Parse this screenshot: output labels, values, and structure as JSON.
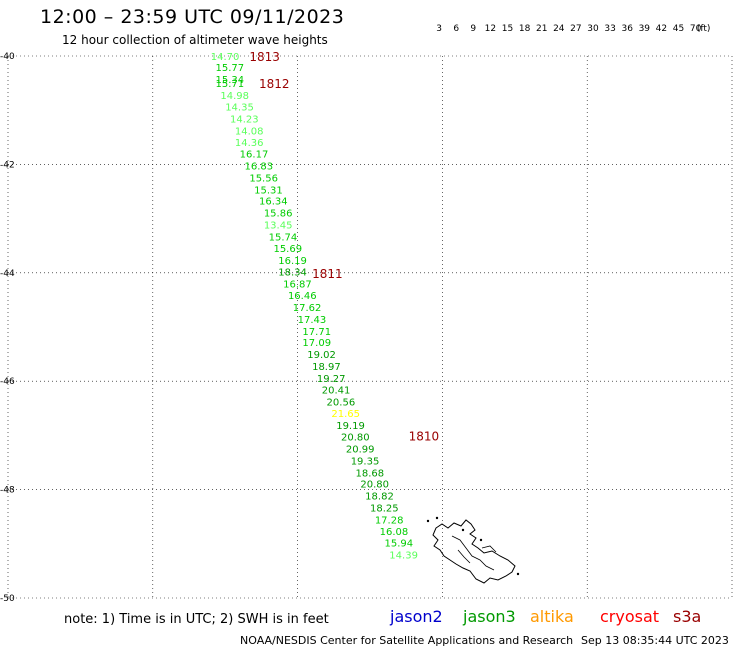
{
  "header": {
    "title": "12:00 – 23:59 UTC 09/11/2023",
    "subtitle": "12 hour collection of altimeter wave heights"
  },
  "colorbar": {
    "colors": [
      "#808080",
      "#00ffff",
      "#00bfff",
      "#0000ff",
      "#5aff5a",
      "#00cc00",
      "#009900",
      "#ffff00",
      "#ffcc00",
      "#ff9900",
      "#ff0000",
      "#cc0000",
      "#990000",
      "#990099",
      "#cc99ff",
      "#ff99ff",
      "#000000"
    ],
    "labels": [
      "3",
      "6",
      "9",
      "12",
      "15",
      "18",
      "21",
      "24",
      "27",
      "30",
      "33",
      "36",
      "39",
      "42",
      "45",
      "70"
    ],
    "unit": "(ft)"
  },
  "map": {
    "lon_range": [
      60,
      75
    ],
    "lat_range": [
      -50,
      -40
    ],
    "lon_ticks": [
      "60",
      "63",
      "66",
      "69",
      "72",
      "75"
    ],
    "lat_ticks": [
      "-40",
      "-42",
      "-44",
      "-46",
      "-48",
      "-50"
    ],
    "grid": "dotted",
    "track_color_light": "#5aff5a",
    "track_color_mid": "#00cc00",
    "track_color_dark": "#009900",
    "track_color_yellow": "#ffff00",
    "time_label_color": "#990000",
    "track": [
      {
        "v": "14.70",
        "lon": 64.2,
        "lat": -40.0
      },
      {
        "v": "15.77",
        "lon": 64.3,
        "lat": -40.2
      },
      {
        "v": "15.34",
        "lon": 64.3,
        "lat": -40.42
      },
      {
        "v": "15.71",
        "lon": 64.3,
        "lat": -40.5
      },
      {
        "v": "14.98",
        "lon": 64.4,
        "lat": -40.72
      },
      {
        "v": "14.35",
        "lon": 64.5,
        "lat": -40.93
      },
      {
        "v": "14.23",
        "lon": 64.6,
        "lat": -41.15
      },
      {
        "v": "14.08",
        "lon": 64.7,
        "lat": -41.37
      },
      {
        "v": "14.36",
        "lon": 64.7,
        "lat": -41.59
      },
      {
        "v": "16.17",
        "lon": 64.8,
        "lat": -41.8
      },
      {
        "v": "16.83",
        "lon": 64.9,
        "lat": -42.02
      },
      {
        "v": "15.56",
        "lon": 65.0,
        "lat": -42.24
      },
      {
        "v": "15.31",
        "lon": 65.1,
        "lat": -42.46
      },
      {
        "v": "16.34",
        "lon": 65.2,
        "lat": -42.67
      },
      {
        "v": "15.86",
        "lon": 65.3,
        "lat": -42.89
      },
      {
        "v": "13.45",
        "lon": 65.3,
        "lat": -43.11
      },
      {
        "v": "15.74",
        "lon": 65.4,
        "lat": -43.33
      },
      {
        "v": "15.69",
        "lon": 65.5,
        "lat": -43.54
      },
      {
        "v": "16.19",
        "lon": 65.6,
        "lat": -43.76
      },
      {
        "v": "18.34",
        "lon": 65.6,
        "lat": -43.98
      },
      {
        "v": "16.87",
        "lon": 65.7,
        "lat": -44.2
      },
      {
        "v": "16.46",
        "lon": 65.8,
        "lat": -44.41
      },
      {
        "v": "17.62",
        "lon": 65.9,
        "lat": -44.63
      },
      {
        "v": "17.43",
        "lon": 66.0,
        "lat": -44.85
      },
      {
        "v": "17.71",
        "lon": 66.1,
        "lat": -45.07
      },
      {
        "v": "17.09",
        "lon": 66.1,
        "lat": -45.28
      },
      {
        "v": "19.02",
        "lon": 66.2,
        "lat": -45.5
      },
      {
        "v": "18.97",
        "lon": 66.3,
        "lat": -45.72
      },
      {
        "v": "19.27",
        "lon": 66.4,
        "lat": -45.94
      },
      {
        "v": "20.41",
        "lon": 66.5,
        "lat": -46.15
      },
      {
        "v": "20.56",
        "lon": 66.6,
        "lat": -46.37
      },
      {
        "v": "21.65",
        "lon": 66.7,
        "lat": -46.59
      },
      {
        "v": "19.19",
        "lon": 66.8,
        "lat": -46.81
      },
      {
        "v": "20.80",
        "lon": 66.9,
        "lat": -47.02
      },
      {
        "v": "20.99",
        "lon": 67.0,
        "lat": -47.24
      },
      {
        "v": "19.35",
        "lon": 67.1,
        "lat": -47.46
      },
      {
        "v": "18.68",
        "lon": 67.2,
        "lat": -47.68
      },
      {
        "v": "20.80",
        "lon": 67.3,
        "lat": -47.89
      },
      {
        "v": "18.82",
        "lon": 67.4,
        "lat": -48.11
      },
      {
        "v": "18.25",
        "lon": 67.5,
        "lat": -48.33
      },
      {
        "v": "17.28",
        "lon": 67.6,
        "lat": -48.55
      },
      {
        "v": "16.08",
        "lon": 67.7,
        "lat": -48.76
      },
      {
        "v": "15.94",
        "lon": 67.8,
        "lat": -48.98
      },
      {
        "v": "14.39",
        "lon": 67.9,
        "lat": -49.2
      }
    ],
    "time_labels": [
      {
        "t": "1813",
        "lon": 65.0,
        "lat": -40.0
      },
      {
        "t": "1812",
        "lon": 65.2,
        "lat": -40.5
      },
      {
        "t": "1811",
        "lon": 66.3,
        "lat": -44.0
      },
      {
        "t": "1810",
        "lon": 68.3,
        "lat": -47.0
      }
    ]
  },
  "footer": {
    "note": "note:  1) Time is in UTC;  2) SWH is in feet",
    "satellites": [
      {
        "name": "jason2",
        "color": "#0000cc"
      },
      {
        "name": "jason3",
        "color": "#009900"
      },
      {
        "name": "altika",
        "color": "#ff9900"
      },
      {
        "name": "cryosat",
        "color": "#ff0000"
      },
      {
        "name": "s3a",
        "color": "#990000"
      }
    ],
    "credit": "NOAA/NESDIS Center for Satellite Applications and Research",
    "timestamp": "Sep 13 08:35:44 UTC 2023"
  }
}
